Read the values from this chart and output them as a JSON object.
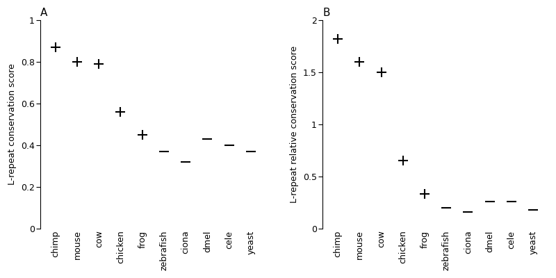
{
  "categories": [
    "chimp",
    "mouse",
    "cow",
    "chicken",
    "frog",
    "zebrafish",
    "ciona",
    "dmel",
    "cele",
    "yeast"
  ],
  "panel_A": {
    "title": "A",
    "ylabel": "L-repeat conservation score",
    "values": [
      0.87,
      0.8,
      0.79,
      0.56,
      0.45,
      0.37,
      0.32,
      0.43,
      0.4,
      0.37
    ],
    "markers_plus": [
      0,
      1,
      2,
      3,
      4
    ],
    "markers_minus": [
      5,
      6,
      7,
      8,
      9
    ],
    "ylim": [
      0,
      1.0
    ],
    "yticks": [
      0,
      0.2,
      0.4,
      0.6,
      0.8,
      1.0
    ],
    "yticklabels": [
      "0",
      "0.2",
      "0.4",
      "0.6",
      "0.8",
      "1"
    ]
  },
  "panel_B": {
    "title": "B",
    "ylabel": "L-repeat relative conservation score",
    "values": [
      1.82,
      1.6,
      1.5,
      0.65,
      0.33,
      0.2,
      0.16,
      0.26,
      0.26,
      0.18
    ],
    "markers_plus": [
      0,
      1,
      2,
      3,
      4
    ],
    "markers_minus": [
      5,
      6,
      7,
      8,
      9
    ],
    "ylim": [
      0,
      2.0
    ],
    "yticks": [
      0,
      0.5,
      1.0,
      1.5,
      2.0
    ],
    "yticklabels": [
      "0",
      "0.5",
      "1",
      "1.5",
      "2"
    ]
  },
  "bg_color": "#ffffff",
  "marker_color": "#000000",
  "marker_size": 10,
  "marker_lw": 1.5
}
